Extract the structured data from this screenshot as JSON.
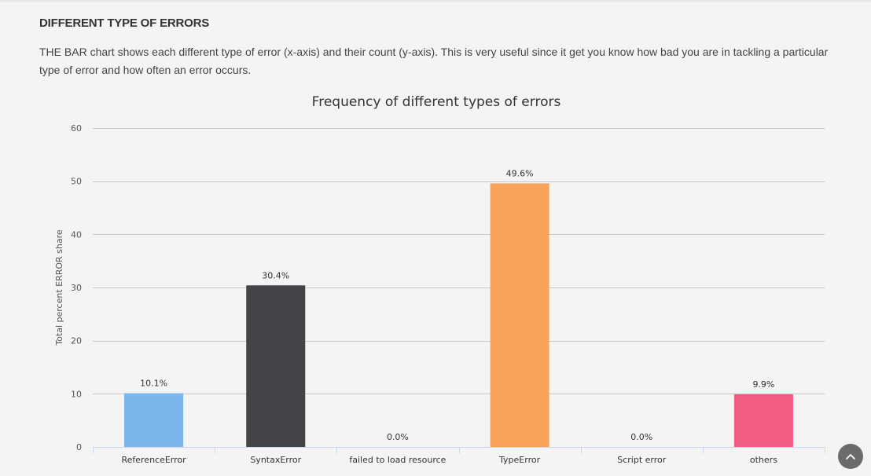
{
  "section": {
    "heading": "DIFFERENT TYPE OF ERRORS",
    "description": "THE BAR chart shows each different type of error (x-axis) and their count (y-axis). This is very useful since it get you know how bad you are in tackling a particular type of error and how often an error occurs."
  },
  "chart_data": {
    "type": "bar",
    "title": "Frequency of different types of errors",
    "xlabel": "",
    "ylabel": "Total percent ERROR share",
    "ylim": [
      0,
      60
    ],
    "yticks": [
      0,
      10,
      20,
      30,
      40,
      50,
      60
    ],
    "grid": true,
    "categories": [
      "ReferenceError",
      "SyntaxError",
      "failed to load resource",
      "TypeError",
      "Script error",
      "others"
    ],
    "values": [
      10.1,
      30.4,
      0.0,
      49.6,
      0.0,
      9.9
    ],
    "data_labels": [
      "10.1%",
      "30.4%",
      "0.0%",
      "49.6%",
      "0.0%",
      "9.9%"
    ],
    "colors": [
      "#7cb5ec",
      "#434348",
      "#90ed7d",
      "#f7a35c",
      "#8085e9",
      "#f15c80"
    ]
  },
  "scroll_top": {
    "icon": "chevron-up-icon"
  }
}
